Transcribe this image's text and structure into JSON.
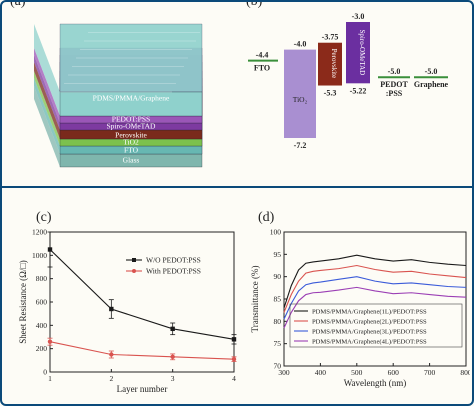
{
  "panels": {
    "a": {
      "label": "(a)",
      "layers": [
        {
          "name": "PDMS/PMMA/Graphene",
          "color": "#8fd1cc"
        },
        {
          "name": "PEDOT:PSS",
          "color": "#9a56b7"
        },
        {
          "name": "Spiro-OMeTAD",
          "color": "#7d3aa0"
        },
        {
          "name": "Perovskite",
          "color": "#7a2a1c"
        },
        {
          "name": "TiO2",
          "color": "#7cc14d"
        },
        {
          "name": "FTO",
          "color": "#67b7b2"
        },
        {
          "name": "Glass",
          "color": "#7fb6ad"
        }
      ]
    },
    "b": {
      "label": "(b)",
      "labels": {
        "fto": "FTO",
        "tio2": "TiO₂",
        "perovskite": "Perovskite",
        "spiro": "Spiro-OMeTAD",
        "pedot": "PEDOT\n:PSS",
        "graphene": "Graphene"
      },
      "values": {
        "fto": "-4.4",
        "tio2_cb": "-4.0",
        "tio2_vb": "-7.2",
        "pvk_cb": "-3.75",
        "pvk_vb": "-5.3",
        "spiro_lumo": "-3.0",
        "spiro_homo": "-5.22",
        "pedot": "-5.0",
        "graphene": "-5.0"
      }
    },
    "c": {
      "label": "(c)"
    },
    "d": {
      "label": "(d)"
    }
  },
  "chart_data": [
    {
      "type": "line",
      "panel": "c",
      "xlabel": "Layer number",
      "ylabel": "Sheet Resistance (Ω/□)",
      "xlim": [
        1,
        4
      ],
      "ylim": [
        0,
        1200
      ],
      "xticks": [
        1,
        2,
        3,
        4
      ],
      "yticks": [
        0,
        200,
        400,
        600,
        800,
        1000,
        1200
      ],
      "legend": "top-right",
      "series": [
        {
          "name": "W/O PEDOT:PSS",
          "color": "#1a1a1a",
          "marker": "square",
          "x": [
            1,
            2,
            3,
            4
          ],
          "y": [
            1050,
            540,
            370,
            280
          ],
          "err": [
            150,
            80,
            50,
            40
          ]
        },
        {
          "name": "With PEDOT:PSS",
          "color": "#d9534f",
          "marker": "circle",
          "x": [
            1,
            2,
            3,
            4
          ],
          "y": [
            260,
            150,
            130,
            110
          ],
          "err": [
            30,
            30,
            25,
            20
          ]
        }
      ]
    },
    {
      "type": "line",
      "panel": "d",
      "xlabel": "Wavelength (nm)",
      "ylabel": "Transmittance (%)",
      "xlim": [
        300,
        800
      ],
      "ylim": [
        70,
        100
      ],
      "xticks": [
        300,
        400,
        500,
        600,
        700,
        800
      ],
      "yticks": [
        70,
        75,
        80,
        85,
        90,
        95,
        100
      ],
      "legend": "bottom-right",
      "series": [
        {
          "name": "PDMS/PMMA/Graphene(1L)/PEDOT:PSS",
          "color": "#1a1a1a",
          "x": [
            300,
            320,
            340,
            360,
            380,
            400,
            450,
            500,
            550,
            600,
            650,
            700,
            750,
            800
          ],
          "y": [
            83,
            88,
            91.5,
            93,
            93.3,
            93.5,
            94,
            94.8,
            94,
            93.5,
            93.8,
            93.2,
            92.8,
            92.5
          ]
        },
        {
          "name": "PDMS/PMMA/Graphene(2L)/PEDOT:PSS",
          "color": "#d9534f",
          "x": [
            300,
            320,
            340,
            360,
            380,
            400,
            450,
            500,
            550,
            600,
            650,
            700,
            750,
            800
          ],
          "y": [
            82,
            86,
            89,
            90.8,
            91.2,
            91.4,
            91.8,
            92.5,
            91.6,
            91,
            91.2,
            90.6,
            90.2,
            89.8
          ]
        },
        {
          "name": "PDMS/PMMA/Graphene(3L)/PEDOT:PSS",
          "color": "#3b5bd9",
          "x": [
            300,
            320,
            340,
            360,
            380,
            400,
            450,
            500,
            550,
            600,
            650,
            700,
            750,
            800
          ],
          "y": [
            80.5,
            84,
            86.8,
            88.2,
            88.6,
            88.8,
            89.4,
            90,
            89,
            88.4,
            88.6,
            88.2,
            87.8,
            87.6
          ]
        },
        {
          "name": "PDMS/PMMA/Graphene(4L)/PEDOT:PSS",
          "color": "#9b3fb5",
          "x": [
            300,
            320,
            340,
            360,
            380,
            400,
            450,
            500,
            550,
            600,
            650,
            700,
            750,
            800
          ],
          "y": [
            78.5,
            82,
            84.6,
            86,
            86.4,
            86.5,
            87,
            87.6,
            86.8,
            86.2,
            86.4,
            86,
            85.6,
            85.4
          ]
        }
      ]
    }
  ]
}
